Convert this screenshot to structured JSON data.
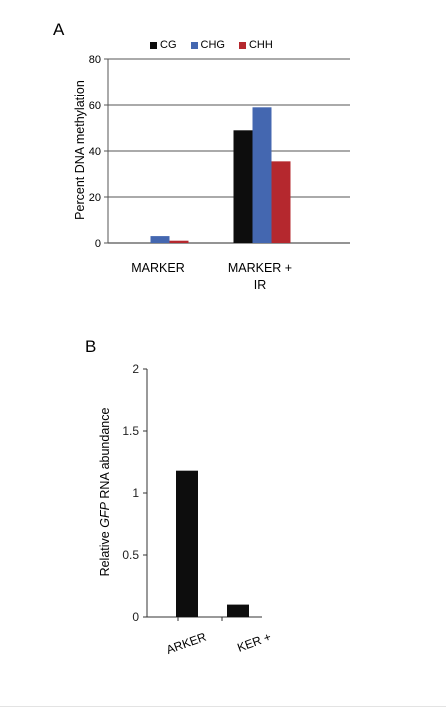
{
  "panels": {
    "a_label": "A",
    "b_label": "B"
  },
  "chart_data": [
    {
      "type": "bar",
      "panel": "A",
      "categories": [
        "MARKER",
        "MARKER +\nIR"
      ],
      "series": [
        {
          "name": "CG",
          "color": "#0d0d0d",
          "values": [
            0,
            49
          ]
        },
        {
          "name": "CHG",
          "color": "#4467b0",
          "values": [
            3,
            59
          ]
        },
        {
          "name": "CHH",
          "color": "#b5282e",
          "values": [
            1,
            35.5
          ]
        }
      ],
      "ylabel": "Percent DNA methylation",
      "ylim": [
        0,
        80
      ],
      "yticks": [
        "0",
        "20",
        "40",
        "60",
        "80"
      ],
      "grid": true,
      "legend": "top"
    },
    {
      "type": "bar",
      "panel": "B",
      "categories": [
        "MARKER",
        "MARKER +"
      ],
      "category_labels_visible": [
        "ARKER",
        "KER +"
      ],
      "values": [
        1.18,
        0.1
      ],
      "color": "#0d0d0d",
      "ylabel_pre": "Relative ",
      "ylabel_italic": "GFP",
      "ylabel_post": " RNA abundance",
      "ylim": [
        0,
        2
      ],
      "yticks": [
        "0",
        "0.5",
        "1",
        "1.5",
        "2"
      ],
      "grid": false
    }
  ]
}
